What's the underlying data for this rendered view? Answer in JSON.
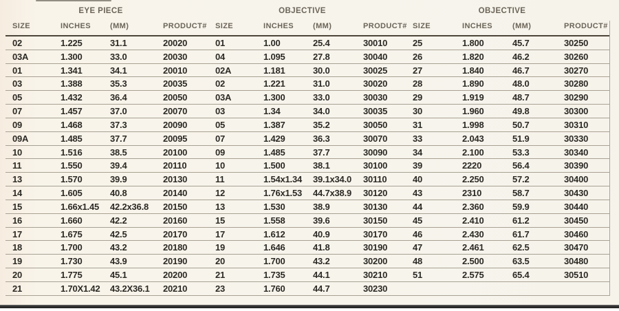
{
  "page": {
    "background_color": "#f7f4ec",
    "data_text_color": "#2c2a25",
    "header_text_color": "#6b6458",
    "row_line_color": "#a8a193",
    "header_rule_color": "#4c4539",
    "bottom_band_color": "#2e2e2e"
  },
  "table": {
    "groups": [
      {
        "label": "EYE PIECE"
      },
      {
        "label": "OBJECTIVE"
      },
      {
        "label": "OBJECTIVE"
      }
    ],
    "column_headers": [
      "SIZE",
      "INCHES",
      "(MM)",
      "PRODUCT#",
      "SIZE",
      "INCHES",
      "(MM)",
      "PRODUCT#",
      "SIZE",
      "INCHES",
      "(MM)",
      "PRODUCT#"
    ],
    "rows": [
      [
        "02",
        "1.225",
        "31.1",
        "20020",
        "01",
        "1.00",
        "25.4",
        "30010",
        "25",
        "1.800",
        "45.7",
        "30250"
      ],
      [
        "03A",
        "1.300",
        "33.0",
        "20030",
        "04",
        "1.095",
        "27.8",
        "30040",
        "26",
        "1.820",
        "46.2",
        "30260"
      ],
      [
        "01",
        "1.341",
        "34.1",
        "20010",
        "02A",
        "1.181",
        "30.0",
        "30025",
        "27",
        "1.840",
        "46.7",
        "30270"
      ],
      [
        "03",
        "1.388",
        "35.3",
        "20035",
        "02",
        "1.221",
        "31.0",
        "30020",
        "28",
        "1.890",
        "48.0",
        "30280"
      ],
      [
        "05",
        "1.432",
        "36.4",
        "20050",
        "03A",
        "1.300",
        "33.0",
        "30030",
        "29",
        "1.919",
        "48.7",
        "30290"
      ],
      [
        "07",
        "1.457",
        "37.0",
        "20070",
        "03",
        "1.34",
        "34.0",
        "30035",
        "30",
        "1.960",
        "49.8",
        "30300"
      ],
      [
        "09",
        "1.468",
        "37.3",
        "20090",
        "05",
        "1.387",
        "35.2",
        "30050",
        "31",
        "1.998",
        "50.7",
        "30310"
      ],
      [
        "09A",
        "1.485",
        "37.7",
        "20095",
        "07",
        "1.429",
        "36.3",
        "30070",
        "33",
        "2.043",
        "51.9",
        "30330"
      ],
      [
        "10",
        "1.516",
        "38.5",
        "20100",
        "09",
        "1.485",
        "37.7",
        "30090",
        "34",
        "2.100",
        "53.3",
        "30340"
      ],
      [
        "11",
        "1.550",
        "39.4",
        "20110",
        "10",
        "1.500",
        "38.1",
        "30100",
        "39",
        "2220",
        "56.4",
        "30390"
      ],
      [
        "13",
        "1.570",
        "39.9",
        "20130",
        "11",
        "1.54x1.34",
        "39.1x34.0",
        "30110",
        "40",
        "2.250",
        "57.2",
        "30400"
      ],
      [
        "14",
        "1.605",
        "40.8",
        "20140",
        "12",
        "1.76x1.53",
        "44.7x38.9",
        "30120",
        "43",
        "2310",
        "58.7",
        "30430"
      ],
      [
        "15",
        "1.66x1.45",
        "42.2x36.8",
        "20150",
        "13",
        "1.530",
        "38.9",
        "30130",
        "44",
        "2.360",
        "59.9",
        "30440"
      ],
      [
        "16",
        "1.660",
        "42.2",
        "20160",
        "15",
        "1.558",
        "39.6",
        "30150",
        "45",
        "2.410",
        "61.2",
        "30450"
      ],
      [
        "17",
        "1.675",
        "42.5",
        "20170",
        "17",
        "1.612",
        "40.9",
        "30170",
        "46",
        "2.430",
        "61.7",
        "30460"
      ],
      [
        "18",
        "1.700",
        "43.2",
        "20180",
        "19",
        "1.646",
        "41.8",
        "30190",
        "47",
        "2.461",
        "62.5",
        "30470"
      ],
      [
        "19",
        "1.730",
        "43.9",
        "20190",
        "20",
        "1.700",
        "43.2",
        "30200",
        "48",
        "2.500",
        "63.5",
        "30480"
      ],
      [
        "20",
        "1.775",
        "45.1",
        "20200",
        "21",
        "1.735",
        "44.1",
        "30210",
        "51",
        "2.575",
        "65.4",
        "30510"
      ],
      [
        "21",
        "1.70X1.42",
        "43.2X36.1",
        "20210",
        "23",
        "1.760",
        "44.7",
        "30230",
        "",
        "",
        "",
        ""
      ]
    ]
  }
}
